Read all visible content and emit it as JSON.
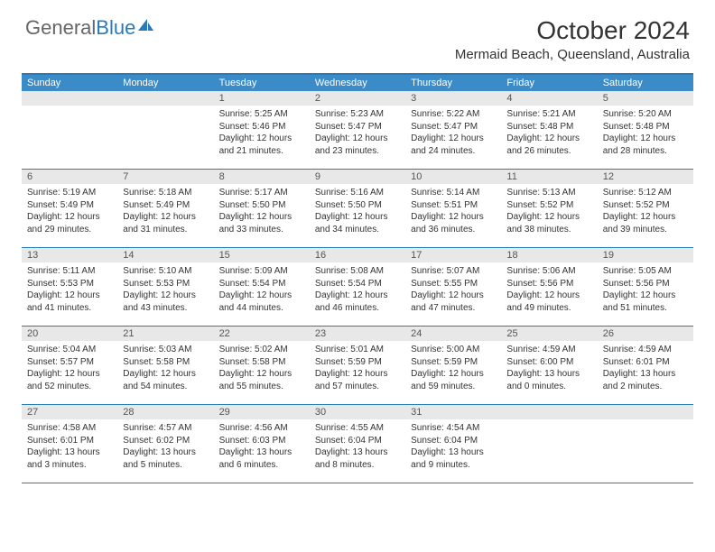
{
  "brand": {
    "part1": "General",
    "part2": "Blue"
  },
  "title": "October 2024",
  "location": "Mermaid Beach, Queensland, Australia",
  "colors": {
    "header_bg": "#3b8bc8",
    "accent": "#2a7ab8",
    "daynum_bg": "#e8e8e8",
    "text": "#333333"
  },
  "weekdays": [
    "Sunday",
    "Monday",
    "Tuesday",
    "Wednesday",
    "Thursday",
    "Friday",
    "Saturday"
  ],
  "weeks": [
    [
      null,
      null,
      {
        "n": "1",
        "sr": "5:25 AM",
        "ss": "5:46 PM",
        "dl": "12 hours and 21 minutes."
      },
      {
        "n": "2",
        "sr": "5:23 AM",
        "ss": "5:47 PM",
        "dl": "12 hours and 23 minutes."
      },
      {
        "n": "3",
        "sr": "5:22 AM",
        "ss": "5:47 PM",
        "dl": "12 hours and 24 minutes."
      },
      {
        "n": "4",
        "sr": "5:21 AM",
        "ss": "5:48 PM",
        "dl": "12 hours and 26 minutes."
      },
      {
        "n": "5",
        "sr": "5:20 AM",
        "ss": "5:48 PM",
        "dl": "12 hours and 28 minutes."
      }
    ],
    [
      {
        "n": "6",
        "sr": "5:19 AM",
        "ss": "5:49 PM",
        "dl": "12 hours and 29 minutes."
      },
      {
        "n": "7",
        "sr": "5:18 AM",
        "ss": "5:49 PM",
        "dl": "12 hours and 31 minutes."
      },
      {
        "n": "8",
        "sr": "5:17 AM",
        "ss": "5:50 PM",
        "dl": "12 hours and 33 minutes."
      },
      {
        "n": "9",
        "sr": "5:16 AM",
        "ss": "5:50 PM",
        "dl": "12 hours and 34 minutes."
      },
      {
        "n": "10",
        "sr": "5:14 AM",
        "ss": "5:51 PM",
        "dl": "12 hours and 36 minutes."
      },
      {
        "n": "11",
        "sr": "5:13 AM",
        "ss": "5:52 PM",
        "dl": "12 hours and 38 minutes."
      },
      {
        "n": "12",
        "sr": "5:12 AM",
        "ss": "5:52 PM",
        "dl": "12 hours and 39 minutes."
      }
    ],
    [
      {
        "n": "13",
        "sr": "5:11 AM",
        "ss": "5:53 PM",
        "dl": "12 hours and 41 minutes."
      },
      {
        "n": "14",
        "sr": "5:10 AM",
        "ss": "5:53 PM",
        "dl": "12 hours and 43 minutes."
      },
      {
        "n": "15",
        "sr": "5:09 AM",
        "ss": "5:54 PM",
        "dl": "12 hours and 44 minutes."
      },
      {
        "n": "16",
        "sr": "5:08 AM",
        "ss": "5:54 PM",
        "dl": "12 hours and 46 minutes."
      },
      {
        "n": "17",
        "sr": "5:07 AM",
        "ss": "5:55 PM",
        "dl": "12 hours and 47 minutes."
      },
      {
        "n": "18",
        "sr": "5:06 AM",
        "ss": "5:56 PM",
        "dl": "12 hours and 49 minutes."
      },
      {
        "n": "19",
        "sr": "5:05 AM",
        "ss": "5:56 PM",
        "dl": "12 hours and 51 minutes."
      }
    ],
    [
      {
        "n": "20",
        "sr": "5:04 AM",
        "ss": "5:57 PM",
        "dl": "12 hours and 52 minutes."
      },
      {
        "n": "21",
        "sr": "5:03 AM",
        "ss": "5:58 PM",
        "dl": "12 hours and 54 minutes."
      },
      {
        "n": "22",
        "sr": "5:02 AM",
        "ss": "5:58 PM",
        "dl": "12 hours and 55 minutes."
      },
      {
        "n": "23",
        "sr": "5:01 AM",
        "ss": "5:59 PM",
        "dl": "12 hours and 57 minutes."
      },
      {
        "n": "24",
        "sr": "5:00 AM",
        "ss": "5:59 PM",
        "dl": "12 hours and 59 minutes."
      },
      {
        "n": "25",
        "sr": "4:59 AM",
        "ss": "6:00 PM",
        "dl": "13 hours and 0 minutes."
      },
      {
        "n": "26",
        "sr": "4:59 AM",
        "ss": "6:01 PM",
        "dl": "13 hours and 2 minutes."
      }
    ],
    [
      {
        "n": "27",
        "sr": "4:58 AM",
        "ss": "6:01 PM",
        "dl": "13 hours and 3 minutes."
      },
      {
        "n": "28",
        "sr": "4:57 AM",
        "ss": "6:02 PM",
        "dl": "13 hours and 5 minutes."
      },
      {
        "n": "29",
        "sr": "4:56 AM",
        "ss": "6:03 PM",
        "dl": "13 hours and 6 minutes."
      },
      {
        "n": "30",
        "sr": "4:55 AM",
        "ss": "6:04 PM",
        "dl": "13 hours and 8 minutes."
      },
      {
        "n": "31",
        "sr": "4:54 AM",
        "ss": "6:04 PM",
        "dl": "13 hours and 9 minutes."
      },
      null,
      null
    ]
  ],
  "labels": {
    "sunrise": "Sunrise:",
    "sunset": "Sunset:",
    "daylight": "Daylight:"
  }
}
